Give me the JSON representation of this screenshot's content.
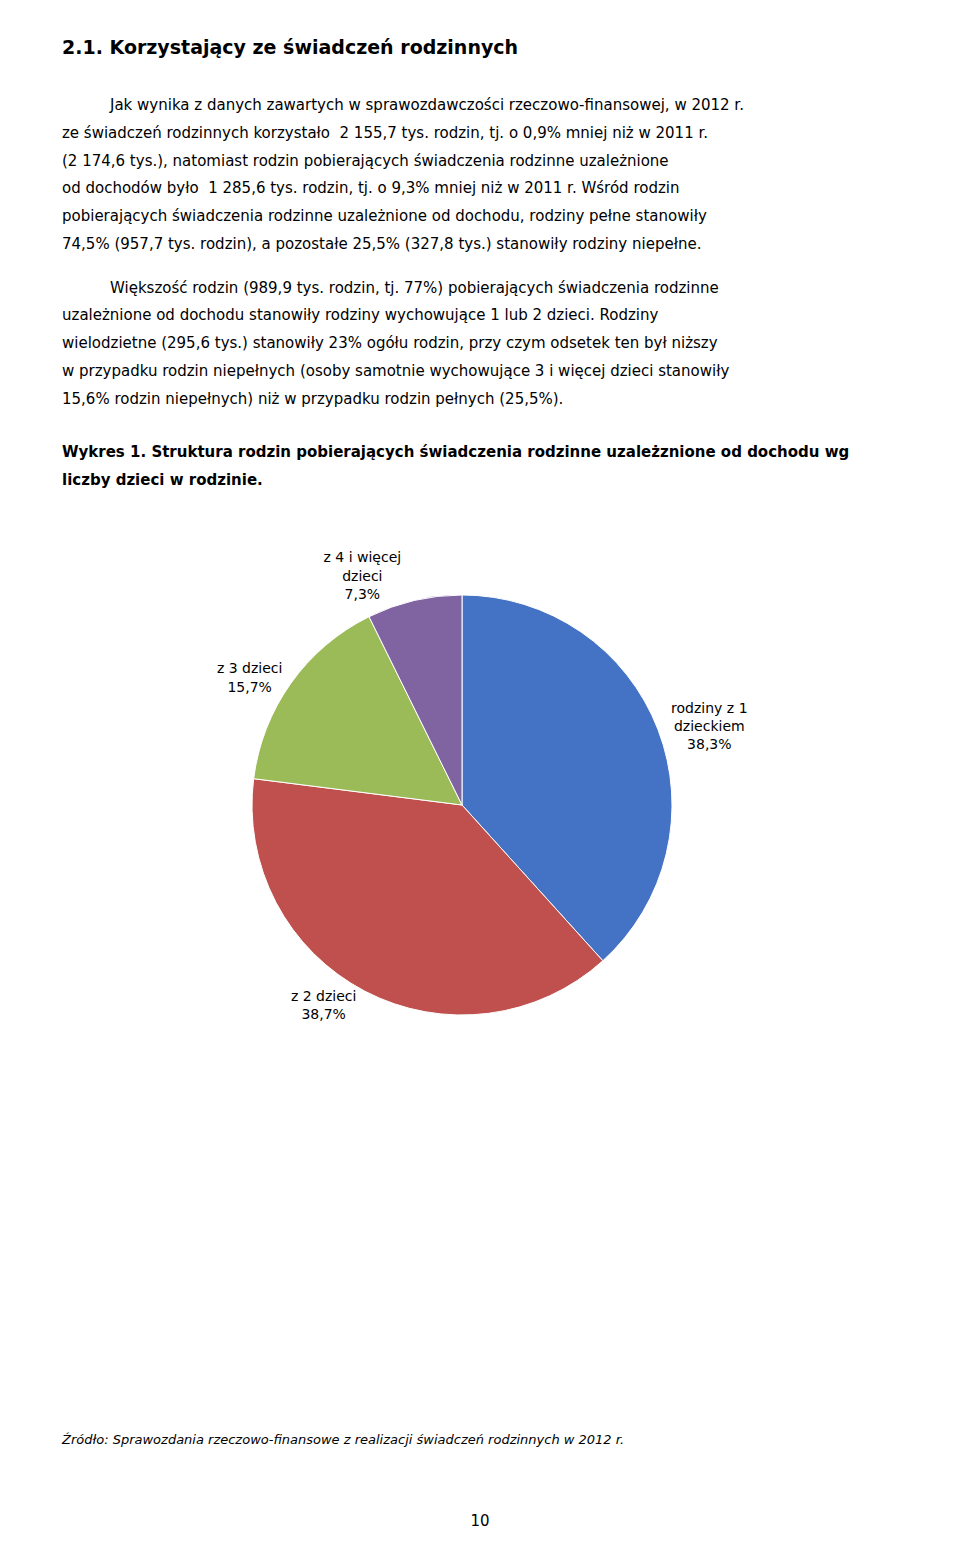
{
  "heading": "2.1. Korzystający ze świadczeń rodzinnych",
  "paragraphs": [
    [
      "Jak wynika z danych zawartych w sprawozdawczości rzeczowo-finansowej, w 2012 r.",
      "ze świadczeń rodzinnych korzystało  2 155,7 tys. rodzin, tj. o 0,9% mniej niż w 2011 r.",
      "(2 174,6 tys.), natomiast rodzin pobierających świadczenia rodzinne uzależnione",
      "od dochodów było  1 285,6 tys. rodzin, tj. o 9,3% mniej niż w 2011 r. Wśród rodzin",
      "pobierających świadczenia rodzinne uzależnione od dochodu, rodziny pełne stanowiły",
      "74,5% (957,7 tys. rodzin), a pozostałe 25,5% (327,8 tys.) stanowiły rodziny niepełne."
    ],
    [
      "Większość rodzin (989,9 tys. rodzin, tj. 77%) pobierających świadczenia rodzinne",
      "uzależnione od dochodu stanowiły rodziny wychowujące 1 lub 2 dzieci. Rodziny",
      "wielodzietne (295,6 tys.) stanowiły 23% ogółu rodzin, przy czym odsetek ten był niższy",
      "w przypadku rodzin niepełnych (osoby samotnie wychowujące 3 i więcej dzieci stanowiły",
      "15,6% rodzin niepełnych) niż w przypadku rodzin pełnych (25,5%)."
    ]
  ],
  "chart_data": {
    "type": "pie",
    "title": "Wykres 1. Struktura rodzin pobierających świadczenia rodzinne uzależznione od dochodu wg\nliczby dzieci w rodzinie.",
    "categories": [
      "rodziny z 1\ndzieckiem",
      "z 2 dzieci",
      "z 3 dzieci",
      "z 4 i więcej\ndzieci"
    ],
    "values": [
      38.3,
      38.7,
      15.7,
      7.3
    ],
    "value_labels": [
      "38,3%",
      "38,7%",
      "15,7%",
      "7,3%"
    ],
    "data_labels": true,
    "colors": [
      "#4472c4",
      "#c0504d",
      "#9bbb59",
      "#8064a2"
    ]
  },
  "source": "Źródło: Sprawozdania rzeczowo-finansowe z realizacji świadczeń rodzinnych w 2012 r.",
  "page_number": "10"
}
